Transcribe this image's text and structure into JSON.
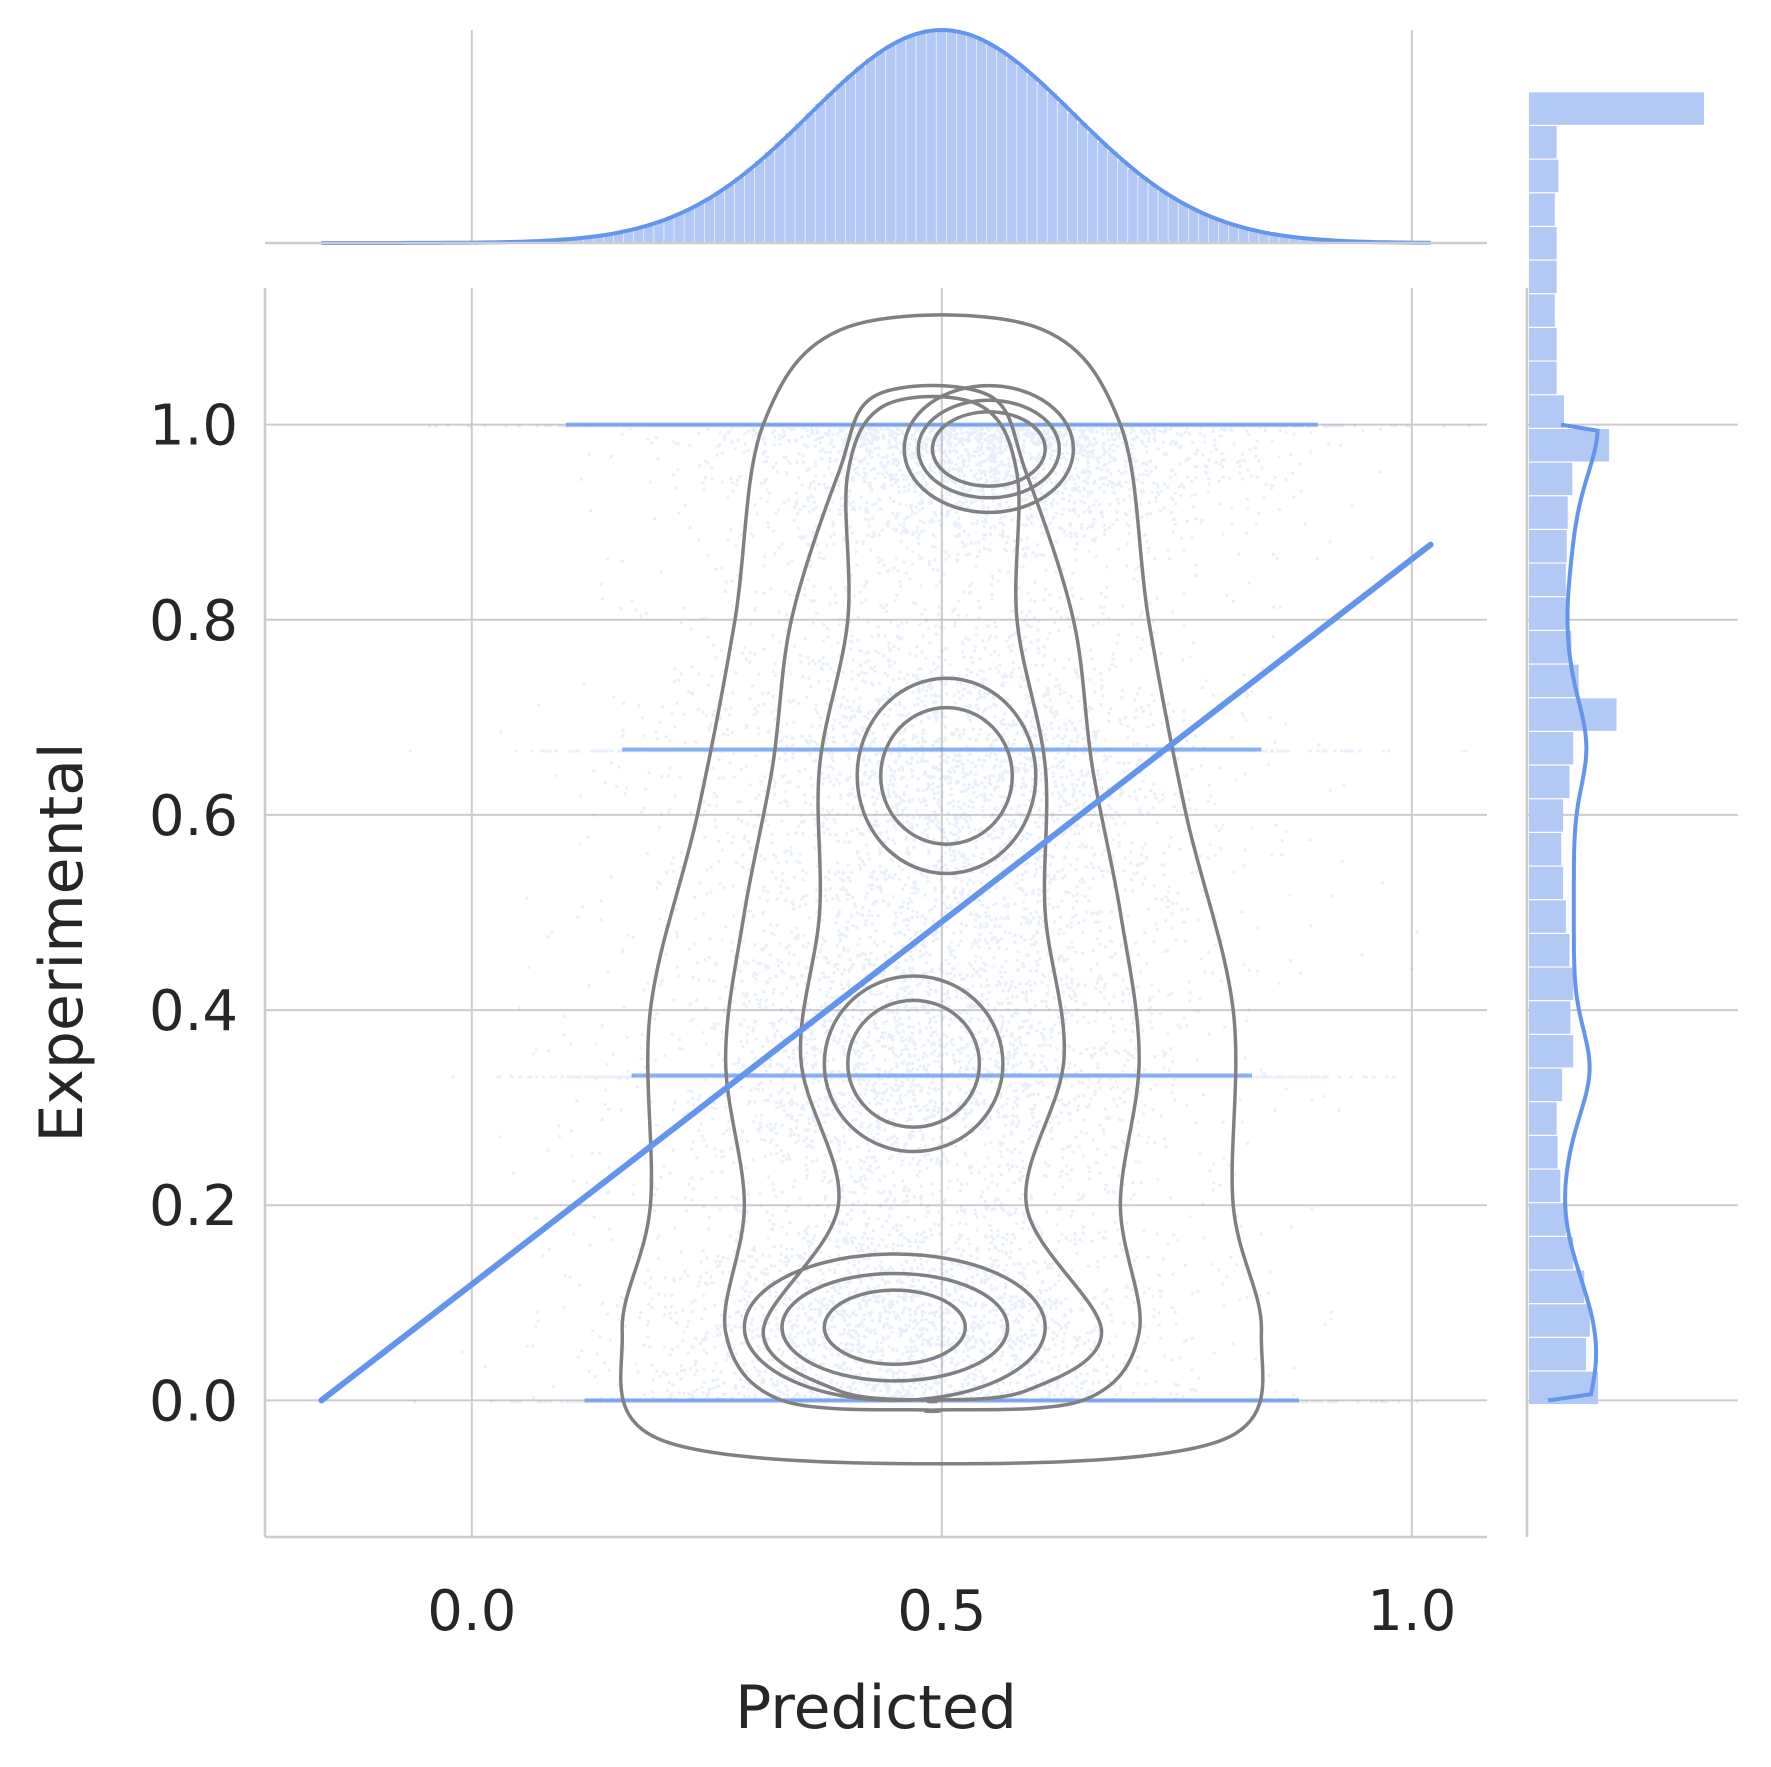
{
  "colors": {
    "accent": "#6495ED",
    "accent_light": "#b3c9f5",
    "contour": "#808080",
    "grid": "#cccccc",
    "text": "#262626"
  },
  "chart_data": {
    "type": "scatter",
    "subtype": "jointplot",
    "xlabel": "Predicted",
    "ylabel": "Experimental",
    "xlim": [
      -0.22,
      1.08
    ],
    "ylim": [
      -0.14,
      1.14
    ],
    "x_ticks": [
      0.0,
      0.5,
      1.0
    ],
    "x_tick_labels": [
      "0.0",
      "0.5",
      "1.0"
    ],
    "y_ticks": [
      0.0,
      0.2,
      0.4,
      0.6,
      0.8,
      1.0
    ],
    "y_tick_labels": [
      "0.0",
      "0.2",
      "0.4",
      "0.6",
      "0.8",
      "1.0"
    ],
    "grid": true,
    "regression_line": {
      "x": [
        -0.16,
        1.02
      ],
      "y": [
        0.0,
        0.877
      ]
    },
    "scatter_model": {
      "n_points": 60000,
      "x_mean": 0.5,
      "x_sd": 0.14,
      "y_levels": [
        0.0,
        0.333,
        0.667,
        1.0
      ],
      "y_level_weights": [
        0.22,
        0.12,
        0.12,
        0.18
      ]
    },
    "kde_contours": {
      "center_x": 0.5,
      "outer_half_width": [
        [
          1.1,
          0.1
        ],
        [
          1.0,
          0.19
        ],
        [
          0.8,
          0.22
        ],
        [
          0.6,
          0.26
        ],
        [
          0.4,
          0.31
        ],
        [
          0.2,
          0.31
        ],
        [
          0.07,
          0.34
        ],
        [
          -0.04,
          0.3
        ],
        [
          -0.065,
          0.0
        ]
      ],
      "peaks": [
        {
          "x": 0.55,
          "y": 0.975,
          "label": "peak-top"
        },
        {
          "x": 0.505,
          "y": 0.64,
          "label": "peak-upper-mid"
        },
        {
          "x": 0.47,
          "y": 0.345,
          "label": "peak-lower-mid"
        },
        {
          "x": 0.45,
          "y": 0.075,
          "label": "peak-bottom"
        }
      ]
    },
    "marginal_x": {
      "kde_mean": 0.5,
      "kde_sd": 0.14,
      "range": [
        -0.16,
        1.02
      ]
    },
    "marginal_y": {
      "bins_edges_start": -0.005,
      "bin_width": 0.0345,
      "counts": [
        0.75,
        0.62,
        0.66,
        0.6,
        0.48,
        0.4,
        0.34,
        0.31,
        0.3,
        0.36,
        0.48,
        0.45,
        0.48,
        0.44,
        0.4,
        0.37,
        0.35,
        0.37,
        0.44,
        0.48,
        0.95,
        0.54,
        0.46,
        0.42,
        0.4,
        0.41,
        0.42,
        0.47,
        0.87,
        0.38,
        0.3,
        0.3,
        0.28,
        0.3,
        0.3,
        0.28,
        0.32,
        0.3,
        1.9
      ]
    }
  }
}
